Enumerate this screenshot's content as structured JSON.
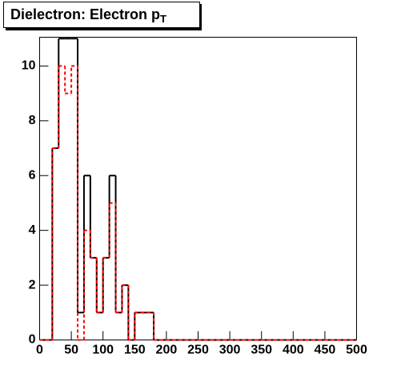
{
  "chart_data": {
    "type": "histogram",
    "title": "Dielectron: Electron p",
    "title_subscript": "T",
    "bins": [
      0,
      10,
      20,
      30,
      40,
      50,
      60,
      70,
      80,
      90,
      100,
      110,
      120,
      130,
      140,
      150,
      160,
      170,
      180,
      190,
      200,
      210,
      220,
      230,
      240,
      250,
      260,
      270,
      280,
      290,
      300,
      310,
      320,
      330,
      340,
      350,
      360,
      370,
      380,
      390,
      400,
      410,
      420,
      430,
      440,
      450,
      460,
      470,
      480,
      490,
      500
    ],
    "series": [
      {
        "color": "#000000",
        "style": "solid",
        "values": [
          0,
          0,
          7,
          11,
          11,
          11,
          1,
          6,
          3,
          1,
          3,
          6,
          1,
          2,
          0,
          1,
          1,
          1,
          0,
          0,
          0,
          0,
          0,
          0,
          0,
          0,
          0,
          0,
          0,
          0,
          0,
          0,
          0,
          0,
          0,
          0,
          0,
          0,
          0,
          0,
          0,
          0,
          0,
          0,
          0,
          0,
          0,
          0,
          0,
          0
        ]
      },
      {
        "color": "#ff0000",
        "style": "dotted",
        "values": [
          0,
          0,
          7,
          10,
          9,
          10,
          0,
          4,
          3,
          1,
          3,
          5,
          1,
          2,
          0,
          1,
          1,
          1,
          0,
          0,
          0,
          0,
          0,
          0,
          0,
          0,
          0,
          0,
          0,
          0,
          0,
          0,
          0,
          0,
          0,
          0,
          0,
          0,
          0,
          0,
          0,
          0,
          0,
          0,
          0,
          0,
          0,
          0,
          0,
          0
        ]
      }
    ],
    "xlim": [
      0,
      500
    ],
    "xticks": [
      0,
      50,
      100,
      150,
      200,
      250,
      300,
      350,
      400,
      450,
      500
    ],
    "ylim": [
      0,
      11.05
    ],
    "yticks": [
      0,
      2,
      4,
      6,
      8,
      10
    ]
  }
}
